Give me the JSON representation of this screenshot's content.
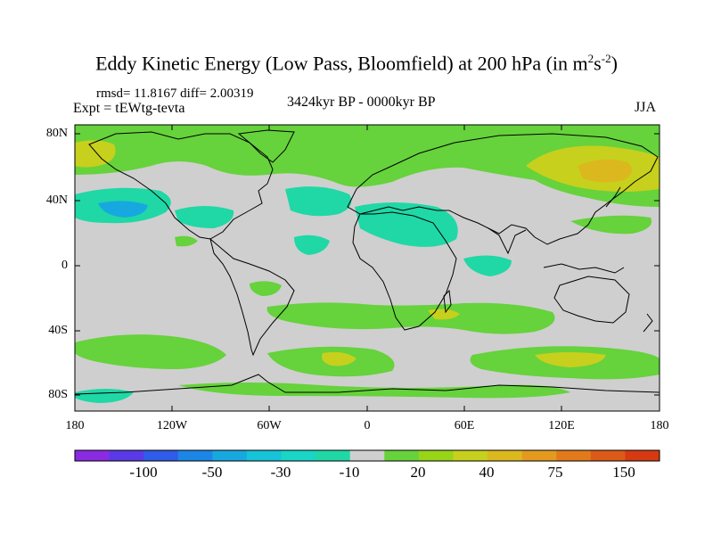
{
  "title": {
    "main": "Eddy Kinetic Energy (Low Pass, Bloomfield) at 200 hPa (in m",
    "sup1": "2",
    "mid": "s",
    "sup2": "-2",
    "end": ")"
  },
  "stats": "rmsd= 11.8167  diff= 2.00319",
  "experiment": "Expt = tEWtg-tevta",
  "period": "3424kyr BP - 0000kyr BP",
  "season": "JJA",
  "axes": {
    "y_labels": [
      "80N",
      "40N",
      "0",
      "40S",
      "80S"
    ],
    "x_labels": [
      "180",
      "120W",
      "60W",
      "0",
      "60E",
      "120E",
      "180"
    ]
  },
  "colorbar": {
    "labels": [
      "-100",
      "-50",
      "-30",
      "-10",
      "20",
      "40",
      "75",
      "150"
    ],
    "colors": [
      "#8a2be2",
      "#5a3ae6",
      "#2f5ce8",
      "#1c86e6",
      "#18a8e0",
      "#17c3d8",
      "#19d6c6",
      "#1fd8a6",
      "#cfcfcf",
      "#66d23c",
      "#98d418",
      "#c7d01c",
      "#dcb81f",
      "#e49a1f",
      "#e27a1c",
      "#dc5a18",
      "#d63a12"
    ]
  },
  "legend": {
    "neutral_color": "#cfcfcf",
    "green_color": "#66d23c",
    "cyan_color": "#1fd8a6",
    "yellow_color": "#c7d01c",
    "orange_color": "#dcb81f",
    "blue_color": "#18a8e0"
  }
}
